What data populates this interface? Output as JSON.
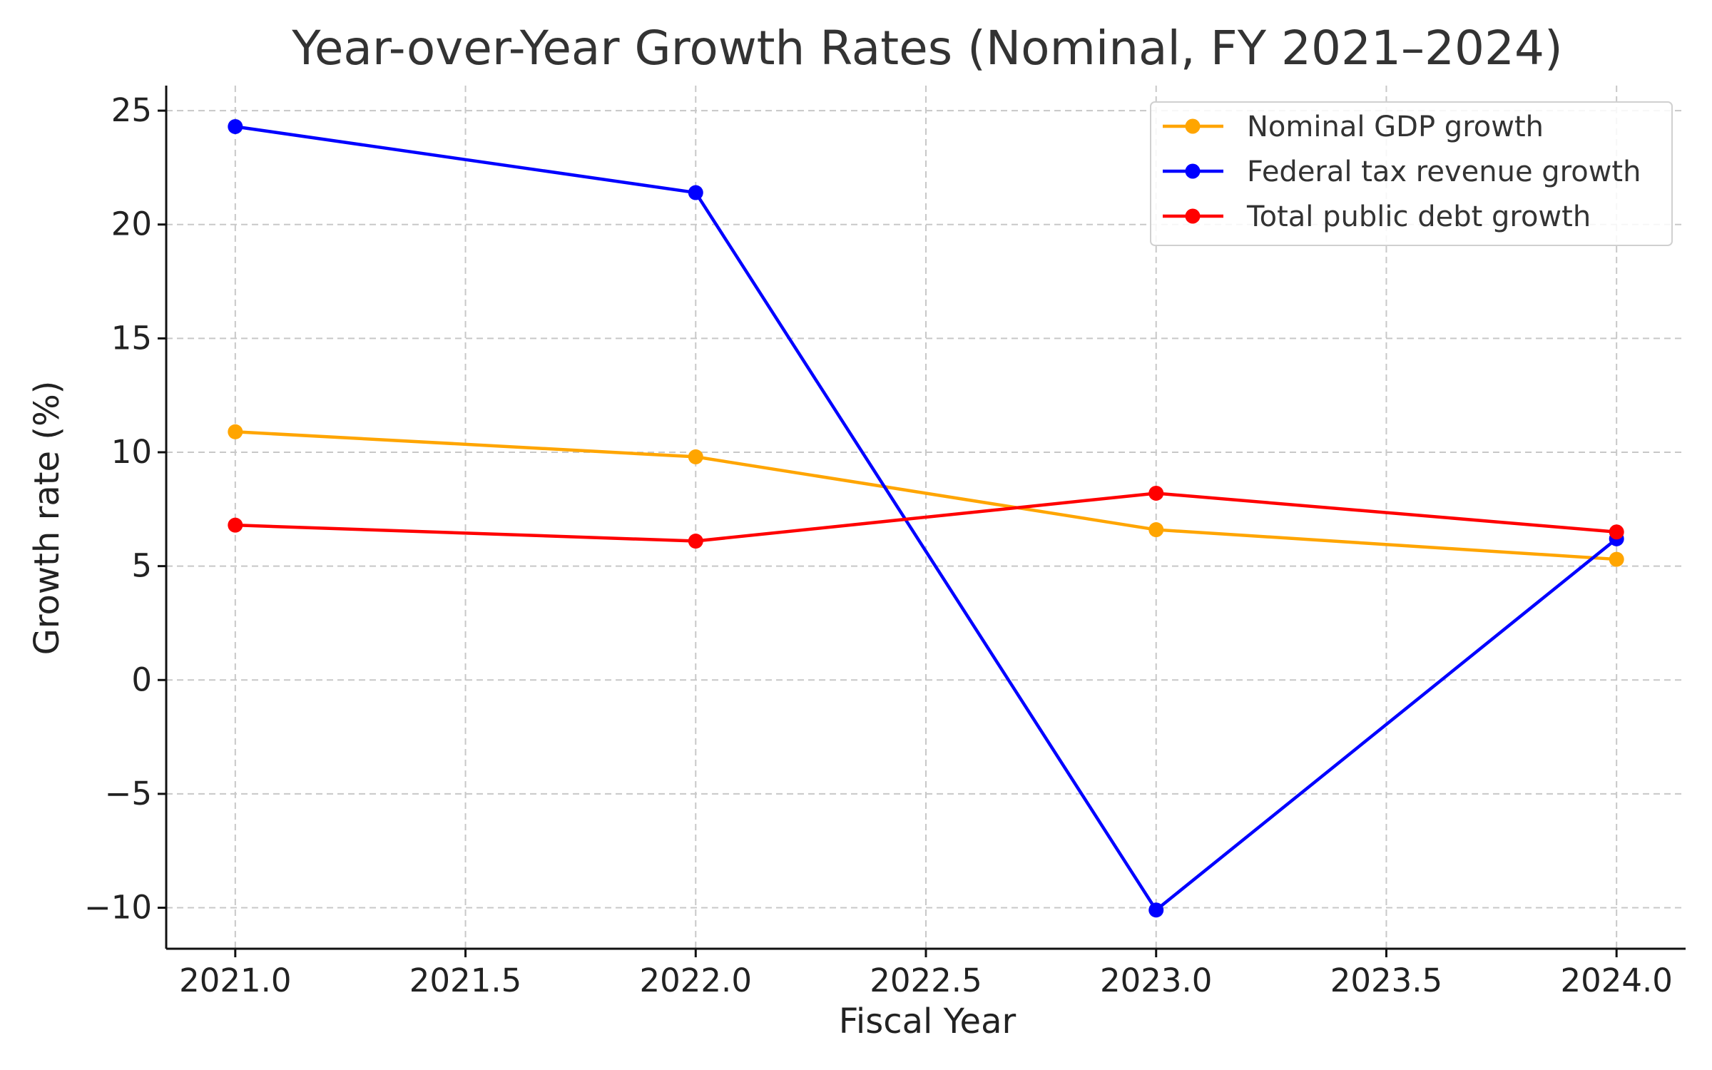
{
  "chart_data": {
    "type": "line",
    "title": "Year-over-Year Growth Rates (Nominal, FY 2021–2024)",
    "xlabel": "Fiscal Year",
    "ylabel": "Growth rate (%)",
    "x": [
      2021,
      2022,
      2023,
      2024
    ],
    "xlim": [
      2020.85,
      2024.15
    ],
    "ylim": [
      -11.8,
      26.1
    ],
    "x_ticks": [
      2021.0,
      2021.5,
      2022.0,
      2022.5,
      2023.0,
      2023.5,
      2024.0
    ],
    "x_tick_labels": [
      "2021.0",
      "2021.5",
      "2022.0",
      "2022.5",
      "2023.0",
      "2023.5",
      "2024.0"
    ],
    "y_ticks": [
      -10,
      -5,
      0,
      5,
      10,
      15,
      20,
      25
    ],
    "y_tick_labels": [
      "−10",
      "−5",
      "0",
      "5",
      "10",
      "15",
      "20",
      "25"
    ],
    "grid": true,
    "legend_position": "top-right",
    "series": [
      {
        "name": "Nominal GDP growth",
        "color": "#FFA500",
        "values": [
          10.9,
          9.8,
          6.6,
          5.3
        ]
      },
      {
        "name": "Federal tax revenue growth",
        "color": "#0000FF",
        "values": [
          24.3,
          21.4,
          -10.1,
          6.2
        ]
      },
      {
        "name": "Total public debt growth",
        "color": "#FF0000",
        "values": [
          6.8,
          6.1,
          8.2,
          6.5
        ]
      }
    ]
  }
}
